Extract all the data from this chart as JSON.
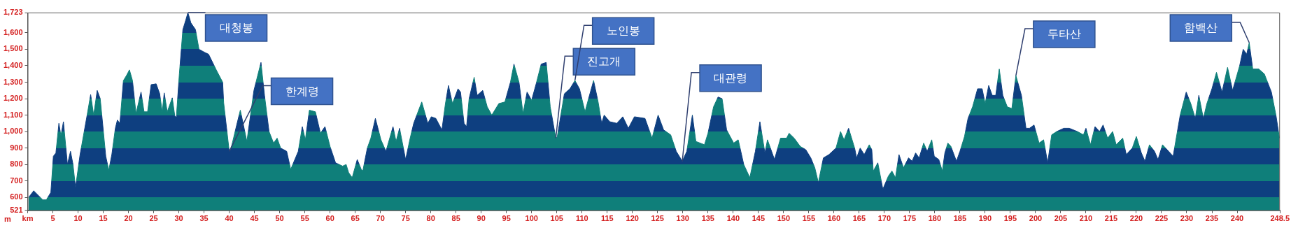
{
  "chart_data": {
    "type": "area",
    "ylabel": "m",
    "xlim": [
      0,
      248.5
    ],
    "xticks": [
      {
        "value": 0,
        "label": "km"
      },
      5,
      10,
      15,
      20,
      25,
      30,
      35,
      40,
      45,
      50,
      55,
      60,
      65,
      70,
      75,
      80,
      85,
      90,
      95,
      100,
      105,
      110,
      115,
      120,
      125,
      130,
      135,
      140,
      145,
      150,
      155,
      160,
      165,
      170,
      175,
      180,
      185,
      190,
      195,
      200,
      205,
      210,
      215,
      220,
      225,
      230,
      235,
      240,
      248.5
    ],
    "ylim": [
      521,
      1723
    ],
    "yticks": [
      521,
      600,
      700,
      800,
      900,
      {
        "value": 1000,
        "label": "1,000"
      },
      {
        "value": 1100,
        "label": "1,100"
      },
      {
        "value": 1200,
        "label": "1,200"
      },
      {
        "value": 1300,
        "label": "1,300"
      },
      {
        "value": 1400,
        "label": "1,400"
      },
      {
        "value": 1500,
        "label": "1,500"
      },
      {
        "value": 1600,
        "label": "1,600"
      },
      {
        "value": 1723,
        "label": "1,723"
      }
    ],
    "x": [
      0.2,
      1.2,
      3.0,
      3.7,
      4.6,
      5.1,
      5.6,
      6.2,
      6.6,
      7.1,
      7.9,
      8.5,
      9.0,
      9.5,
      10.4,
      11.8,
      12.5,
      13.1,
      13.8,
      14.4,
      15.5,
      16.1,
      16.7,
      17.4,
      17.8,
      18.3,
      19.0,
      19.6,
      20.2,
      20.8,
      21.5,
      22.5,
      23.1,
      23.8,
      24.5,
      25.5,
      26.2,
      26.7,
      27.1,
      27.7,
      28.7,
      29.2,
      29.5,
      30.1,
      30.8,
      31.4,
      31.8,
      32.4,
      33.3,
      34.0,
      35.2,
      35.9,
      37.5,
      38.7,
      38.9,
      40.0,
      40.3,
      41.4,
      42.2,
      43.5,
      44.9,
      46.3,
      47.0,
      47.9,
      48.8,
      49.5,
      50.2,
      51.4,
      52.2,
      53.7,
      54.5,
      55.1,
      55.9,
      57.1,
      58.1,
      59.0,
      60.0,
      61.1,
      62.5,
      63.2,
      63.7,
      64.4,
      65.4,
      66.2,
      66.5,
      67.4,
      68.1,
      69.0,
      70.1,
      71.1,
      72.5,
      73.1,
      73.8,
      75.0,
      75.9,
      76.6,
      78.2,
      79.4,
      80.1,
      81.0,
      82.2,
      82.9,
      83.5,
      84.3,
      85.4,
      85.9,
      86.6,
      87.1,
      87.6,
      88.6,
      89.2,
      90.3,
      91.2,
      92.1,
      93.5,
      94.7,
      95.8,
      96.5,
      97.5,
      98.3,
      99.1,
      100.0,
      100.9,
      101.9,
      102.9,
      103.7,
      104.8,
      105.1,
      106.5,
      107.6,
      108.6,
      109.5,
      110.6,
      111.3,
      112.3,
      113.2,
      113.9,
      114.4,
      115.5,
      116.9,
      118.1,
      119.2,
      120.4,
      122.5,
      123.9,
      125.1,
      126.2,
      127.6,
      128.7,
      129.9,
      130.8,
      131.9,
      132.6,
      134.3,
      135.0,
      136.1,
      137.0,
      137.8,
      138.7,
      140.1,
      141.0,
      142.1,
      143.3,
      144.4,
      145.3,
      146.3,
      146.8,
      148.2,
      149.4,
      150.6,
      151.1,
      152.1,
      153.3,
      154.4,
      155.4,
      156.2,
      156.9,
      157.9,
      159.0,
      160.4,
      161.3,
      162.0,
      162.9,
      164.1,
      164.5,
      165.2,
      166.0,
      167.0,
      167.5,
      167.8,
      168.7,
      169.7,
      170.8,
      171.5,
      172.2,
      172.9,
      173.8,
      174.8,
      175.5,
      176.2,
      176.9,
      177.8,
      178.5,
      179.4,
      179.9,
      180.8,
      181.5,
      182.0,
      182.6,
      183.2,
      184.3,
      185.0,
      185.9,
      186.6,
      187.5,
      188.5,
      189.4,
      190.0,
      190.7,
      191.4,
      192.1,
      192.8,
      193.5,
      194.4,
      195.3,
      196.1,
      197.2,
      198.1,
      198.8,
      199.7,
      200.7,
      201.6,
      202.4,
      203.2,
      204.2,
      205.6,
      206.7,
      208.3,
      209.5,
      210.0,
      210.9,
      211.8,
      212.7,
      213.4,
      214.3,
      215.3,
      216.0,
      217.3,
      218.0,
      219.2,
      220.0,
      221.0,
      221.7,
      222.6,
      223.6,
      224.3,
      225.2,
      226.4,
      227.3,
      228.7,
      229.9,
      230.8,
      231.7,
      232.4,
      233.3,
      234.0,
      235.0,
      235.9,
      237.0,
      238.1,
      239.1,
      240.5,
      241.2,
      241.9,
      242.4,
      243.1,
      244.3,
      245.4,
      246.8,
      247.7,
      248.4
    ],
    "series": [
      {
        "color": "#0f7f7a",
        "values": [
          600,
          640,
          585,
          585,
          630,
          850,
          870,
          1050,
          975,
          1060,
          800,
          880,
          800,
          660,
          860,
          1100,
          1225,
          1100,
          1250,
          1200,
          850,
          765,
          860,
          1020,
          1070,
          1050,
          1310,
          1340,
          1375,
          1310,
          1110,
          1240,
          1120,
          1120,
          1285,
          1290,
          1230,
          1120,
          1235,
          1120,
          1205,
          1095,
          1085,
          1350,
          1620,
          1680,
          1723,
          1660,
          1620,
          1500,
          1480,
          1470,
          1370,
          1300,
          1175,
          880,
          890,
          1030,
          1130,
          940,
          1250,
          1420,
          1220,
          1000,
          930,
          960,
          900,
          880,
          770,
          880,
          1030,
          950,
          1130,
          1120,
          990,
          1030,
          910,
          810,
          790,
          800,
          750,
          720,
          830,
          770,
          760,
          900,
          960,
          1080,
          950,
          880,
          1030,
          940,
          1020,
          830,
          960,
          1050,
          1180,
          1050,
          1090,
          1080,
          1010,
          1170,
          1280,
          1170,
          1260,
          1240,
          1050,
          1030,
          1200,
          1330,
          1220,
          1250,
          1150,
          1100,
          1170,
          1180,
          1300,
          1410,
          1300,
          1110,
          1240,
          1190,
          1290,
          1410,
          1420,
          1150,
          960,
          970,
          1230,
          1260,
          1310,
          1260,
          1120,
          1200,
          1310,
          1180,
          1050,
          1100,
          1060,
          1050,
          1090,
          1020,
          1090,
          1080,
          960,
          1100,
          1010,
          980,
          880,
          820,
          880,
          1100,
          940,
          920,
          990,
          1150,
          1210,
          1200,
          1010,
          930,
          950,
          800,
          720,
          880,
          1060,
          870,
          950,
          830,
          960,
          960,
          990,
          960,
          910,
          890,
          840,
          780,
          690,
          840,
          860,
          900,
          1000,
          950,
          1020,
          900,
          840,
          900,
          860,
          920,
          890,
          760,
          810,
          650,
          730,
          760,
          720,
          860,
          780,
          840,
          820,
          870,
          840,
          930,
          880,
          950,
          850,
          830,
          760,
          870,
          930,
          910,
          820,
          880,
          970,
          1080,
          1150,
          1260,
          1260,
          1170,
          1280,
          1220,
          1220,
          1380,
          1220,
          1150,
          1140,
          1340,
          1220,
          1020,
          1020,
          1040,
          930,
          950,
          810,
          980,
          1000,
          1020,
          1020,
          1000,
          980,
          1020,
          920,
          1030,
          1000,
          1040,
          960,
          1000,
          920,
          960,
          860,
          900,
          970,
          870,
          820,
          920,
          880,
          830,
          920,
          880,
          850,
          1100,
          1240,
          1170,
          1080,
          1220,
          1080,
          1170,
          1260,
          1360,
          1240,
          1390,
          1250,
          1400,
          1500,
          1470,
          1540,
          1380,
          1380,
          1350,
          1240,
          1100,
          960
        ]
      }
    ],
    "annotations": [
      {
        "text": "대청봉",
        "x": 31.8,
        "y": 1723
      },
      {
        "text": "한계령",
        "x": 40.0,
        "y": 880
      },
      {
        "text": "진고개",
        "x": 104.8,
        "y": 960
      },
      {
        "text": "노인봉",
        "x": 108.6,
        "y": 1310
      },
      {
        "text": "대관령",
        "x": 129.9,
        "y": 820
      },
      {
        "text": "두타산",
        "x": 196.1,
        "y": 1340
      },
      {
        "text": "함백산",
        "x": 242.4,
        "y": 1540
      }
    ]
  }
}
